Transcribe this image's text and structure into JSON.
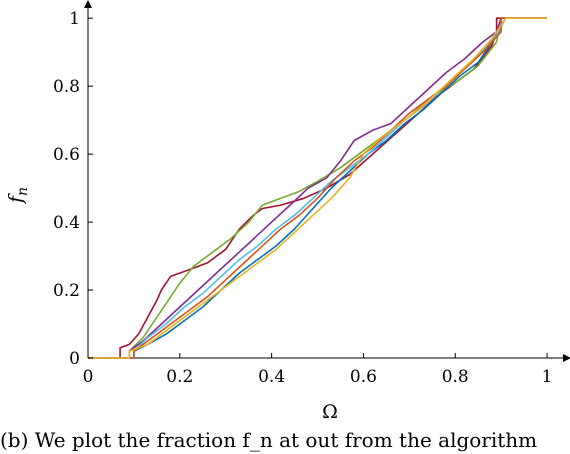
{
  "caption": "(b) We plot the fraction f_n at out from the algorithm",
  "chart_data": {
    "type": "line",
    "title": "",
    "xlabel": "Ω",
    "ylabel": "f",
    "ylabel_sub": "n",
    "xlim": [
      0,
      1.05
    ],
    "ylim": [
      0,
      1.03
    ],
    "xticks": [
      0,
      0.2,
      0.4,
      0.6,
      0.8,
      1
    ],
    "xtick_labels": [
      "0",
      "0.2",
      "0.4",
      "0.6",
      "0.8",
      "1"
    ],
    "yticks": [
      0,
      0.2,
      0.4,
      0.6,
      0.8,
      1
    ],
    "ytick_labels": [
      "0",
      "0.2",
      "0.4",
      "0.6",
      "0.8",
      "1"
    ],
    "grid": false,
    "series": [
      {
        "color": "#a2142f",
        "points": [
          [
            0,
            0
          ],
          [
            0.07,
            0
          ],
          [
            0.07,
            0.03
          ],
          [
            0.09,
            0.04
          ],
          [
            0.11,
            0.07
          ],
          [
            0.13,
            0.12
          ],
          [
            0.15,
            0.17
          ],
          [
            0.16,
            0.2
          ],
          [
            0.18,
            0.24
          ],
          [
            0.22,
            0.26
          ],
          [
            0.26,
            0.28
          ],
          [
            0.3,
            0.32
          ],
          [
            0.33,
            0.38
          ],
          [
            0.36,
            0.42
          ],
          [
            0.38,
            0.44
          ],
          [
            0.42,
            0.45
          ],
          [
            0.47,
            0.47
          ],
          [
            0.52,
            0.5
          ],
          [
            0.57,
            0.54
          ],
          [
            0.62,
            0.6
          ],
          [
            0.67,
            0.66
          ],
          [
            0.72,
            0.72
          ],
          [
            0.76,
            0.77
          ],
          [
            0.8,
            0.81
          ],
          [
            0.84,
            0.85
          ],
          [
            0.88,
            0.92
          ],
          [
            0.89,
            0.96
          ],
          [
            0.89,
            1
          ],
          [
            1,
            1
          ]
        ]
      },
      {
        "color": "#77ac30",
        "points": [
          [
            0,
            0
          ],
          [
            0.09,
            0
          ],
          [
            0.09,
            0.02
          ],
          [
            0.12,
            0.06
          ],
          [
            0.15,
            0.12
          ],
          [
            0.18,
            0.18
          ],
          [
            0.2,
            0.22
          ],
          [
            0.23,
            0.27
          ],
          [
            0.27,
            0.31
          ],
          [
            0.31,
            0.35
          ],
          [
            0.35,
            0.4
          ],
          [
            0.38,
            0.45
          ],
          [
            0.42,
            0.47
          ],
          [
            0.46,
            0.49
          ],
          [
            0.5,
            0.52
          ],
          [
            0.55,
            0.56
          ],
          [
            0.6,
            0.61
          ],
          [
            0.65,
            0.66
          ],
          [
            0.7,
            0.71
          ],
          [
            0.75,
            0.77
          ],
          [
            0.8,
            0.81
          ],
          [
            0.85,
            0.86
          ],
          [
            0.89,
            0.93
          ],
          [
            0.9,
            1
          ],
          [
            1,
            1
          ]
        ]
      },
      {
        "color": "#7e2f8e",
        "points": [
          [
            0,
            0
          ],
          [
            0.09,
            0
          ],
          [
            0.09,
            0.02
          ],
          [
            0.12,
            0.05
          ],
          [
            0.16,
            0.1
          ],
          [
            0.2,
            0.15
          ],
          [
            0.24,
            0.2
          ],
          [
            0.28,
            0.25
          ],
          [
            0.32,
            0.3
          ],
          [
            0.36,
            0.35
          ],
          [
            0.4,
            0.4
          ],
          [
            0.44,
            0.45
          ],
          [
            0.48,
            0.5
          ],
          [
            0.52,
            0.53
          ],
          [
            0.55,
            0.58
          ],
          [
            0.58,
            0.64
          ],
          [
            0.62,
            0.67
          ],
          [
            0.66,
            0.69
          ],
          [
            0.7,
            0.74
          ],
          [
            0.74,
            0.79
          ],
          [
            0.78,
            0.84
          ],
          [
            0.82,
            0.88
          ],
          [
            0.86,
            0.93
          ],
          [
            0.89,
            0.96
          ],
          [
            0.9,
            1
          ],
          [
            1,
            1
          ]
        ]
      },
      {
        "color": "#0072bd",
        "points": [
          [
            0,
            0
          ],
          [
            0.1,
            0
          ],
          [
            0.1,
            0.02
          ],
          [
            0.13,
            0.04
          ],
          [
            0.17,
            0.07
          ],
          [
            0.21,
            0.11
          ],
          [
            0.25,
            0.15
          ],
          [
            0.29,
            0.2
          ],
          [
            0.33,
            0.25
          ],
          [
            0.37,
            0.29
          ],
          [
            0.41,
            0.33
          ],
          [
            0.45,
            0.38
          ],
          [
            0.49,
            0.44
          ],
          [
            0.53,
            0.5
          ],
          [
            0.57,
            0.55
          ],
          [
            0.61,
            0.6
          ],
          [
            0.65,
            0.64
          ],
          [
            0.69,
            0.69
          ],
          [
            0.73,
            0.73
          ],
          [
            0.77,
            0.78
          ],
          [
            0.81,
            0.83
          ],
          [
            0.85,
            0.87
          ],
          [
            0.88,
            0.93
          ],
          [
            0.9,
            0.97
          ],
          [
            0.9,
            1
          ],
          [
            1,
            1
          ]
        ]
      },
      {
        "color": "#4dbeee",
        "points": [
          [
            0,
            0
          ],
          [
            0.1,
            0
          ],
          [
            0.1,
            0.02
          ],
          [
            0.13,
            0.06
          ],
          [
            0.17,
            0.1
          ],
          [
            0.21,
            0.15
          ],
          [
            0.25,
            0.19
          ],
          [
            0.29,
            0.24
          ],
          [
            0.33,
            0.29
          ],
          [
            0.37,
            0.33
          ],
          [
            0.41,
            0.38
          ],
          [
            0.45,
            0.42
          ],
          [
            0.49,
            0.47
          ],
          [
            0.53,
            0.52
          ],
          [
            0.57,
            0.56
          ],
          [
            0.61,
            0.6
          ],
          [
            0.65,
            0.65
          ],
          [
            0.69,
            0.7
          ],
          [
            0.73,
            0.74
          ],
          [
            0.77,
            0.79
          ],
          [
            0.81,
            0.84
          ],
          [
            0.85,
            0.89
          ],
          [
            0.89,
            0.95
          ],
          [
            0.91,
            1
          ],
          [
            1,
            1
          ]
        ]
      },
      {
        "color": "#d95319",
        "points": [
          [
            0,
            0
          ],
          [
            0.1,
            0
          ],
          [
            0.1,
            0.02
          ],
          [
            0.14,
            0.06
          ],
          [
            0.18,
            0.1
          ],
          [
            0.22,
            0.14
          ],
          [
            0.26,
            0.18
          ],
          [
            0.3,
            0.23
          ],
          [
            0.34,
            0.28
          ],
          [
            0.38,
            0.33
          ],
          [
            0.42,
            0.38
          ],
          [
            0.46,
            0.42
          ],
          [
            0.5,
            0.47
          ],
          [
            0.54,
            0.53
          ],
          [
            0.58,
            0.58
          ],
          [
            0.62,
            0.62
          ],
          [
            0.66,
            0.67
          ],
          [
            0.7,
            0.72
          ],
          [
            0.74,
            0.76
          ],
          [
            0.78,
            0.8
          ],
          [
            0.82,
            0.85
          ],
          [
            0.86,
            0.9
          ],
          [
            0.9,
            0.96
          ],
          [
            0.9,
            1
          ],
          [
            1,
            1
          ]
        ]
      },
      {
        "color": "#edb120",
        "points": [
          [
            0,
            0
          ],
          [
            0.09,
            0
          ],
          [
            0.09,
            0.02
          ],
          [
            0.13,
            0.04
          ],
          [
            0.17,
            0.08
          ],
          [
            0.21,
            0.12
          ],
          [
            0.25,
            0.16
          ],
          [
            0.29,
            0.2
          ],
          [
            0.33,
            0.24
          ],
          [
            0.37,
            0.28
          ],
          [
            0.41,
            0.32
          ],
          [
            0.45,
            0.37
          ],
          [
            0.49,
            0.42
          ],
          [
            0.53,
            0.47
          ],
          [
            0.57,
            0.53
          ],
          [
            0.6,
            0.6
          ],
          [
            0.64,
            0.65
          ],
          [
            0.68,
            0.69
          ],
          [
            0.72,
            0.73
          ],
          [
            0.76,
            0.78
          ],
          [
            0.8,
            0.83
          ],
          [
            0.84,
            0.88
          ],
          [
            0.88,
            0.94
          ],
          [
            0.9,
            0.98
          ],
          [
            0.91,
            1
          ],
          [
            1,
            1
          ]
        ]
      }
    ]
  }
}
